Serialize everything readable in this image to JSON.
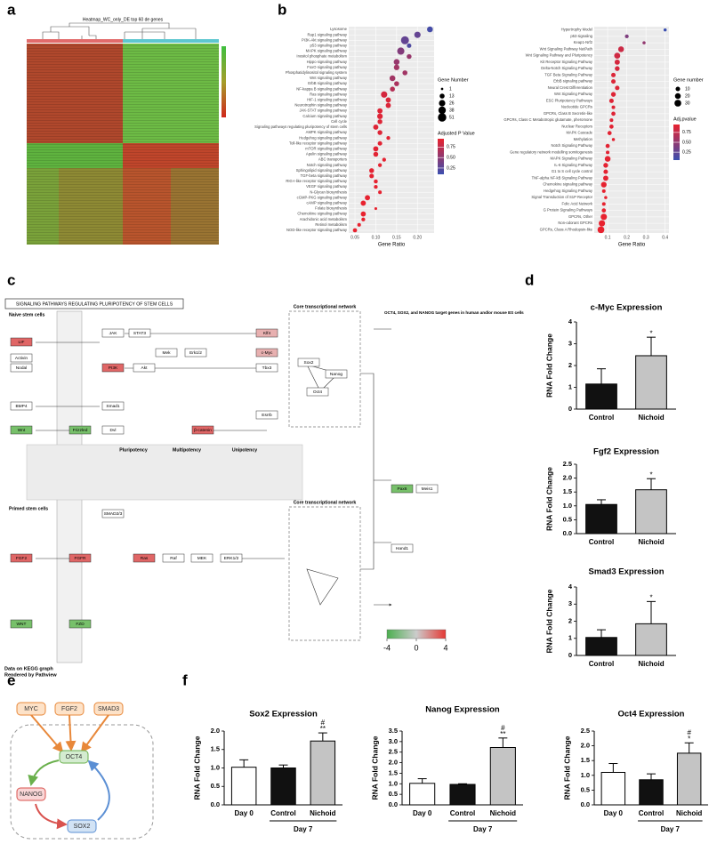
{
  "panel_labels": [
    "a",
    "b",
    "c",
    "d",
    "e",
    "f"
  ],
  "heatmap": {
    "title": "Heatmap_WC_only_DE top 60 de genes"
  },
  "chart_data": [
    {
      "type": "dot",
      "xlabel": "Gene Ratio",
      "categories": [
        "Lysosome",
        "Rap1 signaling pathway",
        "PI3K-Akt signaling pathway",
        "p53 signaling pathway",
        "MAPK signaling pathway",
        "Inositol phosphate metabolism",
        "Hippo signaling pathway",
        "FoxO signaling pathway",
        "Phosphatidylinositol signaling system",
        "Wnt signaling pathway",
        "ErbB signaling pathway",
        "NF-kappa B signaling pathway",
        "Ras signaling pathway",
        "HIF-1 signaling pathway",
        "Neurotrophin signaling pathway",
        "JAK-STAT signaling pathway",
        "Calcium signaling pathway",
        "Cell cycle",
        "Signaling pathways regulating pluripotency of stem cells",
        "AMPK signaling pathway",
        "Hedgehog signaling pathway",
        "Toll-like receptor signaling pathway",
        "mTOR signaling pathway",
        "Apelin signaling pathway",
        "ABC transporters",
        "Notch signaling pathway",
        "Sphingolipid signaling pathway",
        "TGF-beta signaling pathway",
        "RIG-I-like receptor signaling pathway",
        "VEGF signaling pathway",
        "N-Glycan biosynthesis",
        "cGMP-PKG signaling pathway",
        "cAMP signaling pathway",
        "Folate biosynthesis",
        "Chemokine signaling pathway",
        "Arachidonic acid metabolism",
        "Retinol metabolism",
        "NOD-like receptor signaling pathway"
      ],
      "values": [
        0.23,
        0.2,
        0.17,
        0.18,
        0.16,
        0.18,
        0.15,
        0.15,
        0.17,
        0.14,
        0.15,
        0.14,
        0.12,
        0.13,
        0.13,
        0.11,
        0.11,
        0.11,
        0.1,
        0.11,
        0.13,
        0.11,
        0.1,
        0.1,
        0.12,
        0.11,
        0.09,
        0.09,
        0.1,
        0.1,
        0.11,
        0.08,
        0.07,
        0.1,
        0.07,
        0.07,
        0.06,
        0.05
      ],
      "sizes": [
        20,
        25,
        45,
        10,
        35,
        12,
        20,
        18,
        13,
        20,
        13,
        13,
        25,
        15,
        15,
        15,
        18,
        12,
        15,
        12,
        6,
        10,
        15,
        13,
        6,
        6,
        12,
        10,
        7,
        6,
        5,
        15,
        15,
        2,
        14,
        6,
        5,
        8
      ],
      "pvalues": [
        0.15,
        0.3,
        0.3,
        0.2,
        0.45,
        0.55,
        0.55,
        0.6,
        0.6,
        0.6,
        0.65,
        0.7,
        0.85,
        0.88,
        0.88,
        0.9,
        0.9,
        0.9,
        0.9,
        0.9,
        0.92,
        0.92,
        0.92,
        0.92,
        0.93,
        0.93,
        0.93,
        0.93,
        0.94,
        0.94,
        0.94,
        0.94,
        0.95,
        0.95,
        0.95,
        0.95,
        0.95,
        0.95
      ],
      "xlim": [
        0.035,
        0.24
      ],
      "xticks": [
        0.05,
        {
          "value": 0.1,
          "label": "0.10"
        },
        0.15,
        {
          "value": 0.2,
          "label": "0.20"
        }
      ],
      "size_legend": {
        "title": "Gene Number",
        "values": [
          1,
          13,
          26,
          38,
          51
        ]
      },
      "color_legend": {
        "title": "Adjusted P Value",
        "ticks": [
          0.75,
          {
            "value": 0.5,
            "label": "0.50"
          },
          0.25
        ]
      },
      "clim": [
        0.1,
        0.95
      ],
      "colors": {
        "low": "#3b4fb0",
        "high": "#e8222f"
      },
      "background": "#ebebeb"
    },
    {
      "type": "dot",
      "xlabel": "Gene Ratio",
      "categories": [
        "Hypertrophy Model",
        "p53 signaling",
        "Keap1-Nrf2",
        "Wnt Signaling Pathway NetPath",
        "Wnt Signaling Pathway and Pluripotency",
        "Kit Receptor Signaling Pathway",
        "Delta-Notch Signaling Pathway",
        "TGF Beta Signaling Pathway",
        "ErbB signaling pathway",
        "Neural Crest Differentiation",
        "Wnt Signaling Pathway",
        "ESC Pluripotency Pathways",
        "Nucleotide GPCRs",
        "GPCRs, Class B Secretin-like",
        "GPCRs, Class C Metabotropic glutamate, pheromone",
        "Nuclear Receptors",
        "MAPK Cascade",
        "Methylation",
        "Notch Signaling Pathway",
        "Gene regulatory network modelling somitogenesis",
        "MAPK Signaling Pathway",
        "IL-6 Signaling Pathway",
        "G1 to S cell cycle control",
        "TNF-alpha NF-kB Signaling Pathway",
        "Chemokine signaling pathway",
        "Hedgehog Signaling Pathway",
        "Signal Transduction of S1P Receptor",
        "Folic Acid Network",
        "G Protein Signaling Pathways",
        "GPCRs, Other",
        "Non-odorant GPCRs",
        "GPCRs, Class A Rhodopsin-like"
      ],
      "values": [
        0.4,
        0.2,
        0.29,
        0.17,
        0.15,
        0.15,
        0.15,
        0.13,
        0.13,
        0.15,
        0.13,
        0.12,
        0.13,
        0.13,
        0.12,
        0.12,
        0.11,
        0.13,
        0.1,
        0.1,
        0.1,
        0.09,
        0.09,
        0.09,
        0.08,
        0.08,
        0.09,
        0.08,
        0.08,
        0.08,
        0.07,
        0.065
      ],
      "sizes": [
        3,
        6,
        3,
        20,
        22,
        15,
        12,
        10,
        10,
        10,
        12,
        10,
        5,
        8,
        5,
        8,
        8,
        3,
        8,
        5,
        20,
        12,
        10,
        15,
        18,
        5,
        3,
        5,
        8,
        25,
        25,
        30
      ],
      "pvalues": [
        0.05,
        0.4,
        0.5,
        0.8,
        0.82,
        0.85,
        0.85,
        0.88,
        0.88,
        0.88,
        0.9,
        0.9,
        0.9,
        0.9,
        0.9,
        0.92,
        0.92,
        0.92,
        0.92,
        0.92,
        0.93,
        0.93,
        0.93,
        0.93,
        0.94,
        0.94,
        0.94,
        0.94,
        0.95,
        0.95,
        0.95,
        0.95
      ],
      "xlim": [
        0.03,
        0.42
      ],
      "xticks": [
        0.1,
        0.2,
        0.3,
        0.4
      ],
      "size_legend": {
        "title": "Gene number",
        "values": [
          10,
          20,
          30
        ]
      },
      "color_legend": {
        "title": "Adj.pvalue",
        "ticks": [
          0.75,
          {
            "value": 0.5,
            "label": "0.50"
          },
          0.25
        ]
      },
      "clim": [
        0.05,
        0.95
      ],
      "colors": {
        "low": "#3b4fb0",
        "high": "#e8222f"
      },
      "background": "#ebebeb"
    },
    {
      "type": "bar",
      "title": "c-Myc Expression",
      "ylabel": "RNA Fold Change",
      "categories": [
        "Control",
        "Nichoid"
      ],
      "values": [
        1.15,
        2.45
      ],
      "errors": [
        0.7,
        0.85
      ],
      "colors": [
        "#111111",
        "#c4c4c4"
      ],
      "annotations": [
        null,
        [
          "*"
        ]
      ],
      "ylim": [
        0,
        4
      ],
      "yticks": [
        0,
        1,
        2,
        3,
        4
      ]
    },
    {
      "type": "bar",
      "title": "Fgf2 Expression",
      "ylabel": "RNA Fold Change",
      "categories": [
        "Control",
        "Nichoid"
      ],
      "values": [
        1.05,
        1.58
      ],
      "errors": [
        0.17,
        0.4
      ],
      "colors": [
        "#111111",
        "#c4c4c4"
      ],
      "annotations": [
        null,
        [
          "*"
        ]
      ],
      "ylim": [
        0,
        2.5
      ],
      "yticks": [
        {
          "value": 0,
          "label": "0.0"
        },
        0.5,
        {
          "value": 1,
          "label": "1.0"
        },
        1.5,
        {
          "value": 2,
          "label": "2.0"
        },
        2.5
      ]
    },
    {
      "type": "bar",
      "title": "Smad3 Expression",
      "ylabel": "RNA Fold Change",
      "categories": [
        "Control",
        "Nichoid"
      ],
      "values": [
        1.05,
        1.85
      ],
      "errors": [
        0.45,
        1.3
      ],
      "colors": [
        "#111111",
        "#c4c4c4"
      ],
      "annotations": [
        null,
        [
          "*"
        ]
      ],
      "ylim": [
        0,
        4
      ],
      "yticks": [
        0,
        1,
        2,
        3,
        4
      ]
    },
    {
      "type": "bar",
      "title": "Sox2 Expression",
      "ylabel": "RNA Fold Change",
      "categories": [
        "Day 0",
        "Control",
        "Nichoid"
      ],
      "values": [
        1.02,
        1.0,
        1.73
      ],
      "errors": [
        0.2,
        0.08,
        0.22
      ],
      "colors": [
        "#ffffff",
        "#111111",
        "#c4c4c4"
      ],
      "annotations": [
        null,
        null,
        [
          "#",
          "**"
        ]
      ],
      "group_label": "Day 7",
      "ylim": [
        0,
        2
      ],
      "yticks": [
        {
          "value": 0,
          "label": "0.0"
        },
        0.5,
        {
          "value": 1,
          "label": "1.0"
        },
        1.5,
        {
          "value": 2,
          "label": "2.0"
        }
      ]
    },
    {
      "type": "bar",
      "title": "Nanog Expression",
      "ylabel": "RNA Fold Change",
      "categories": [
        "Day 0",
        "Control",
        "Nichoid"
      ],
      "values": [
        1.02,
        0.97,
        2.72
      ],
      "errors": [
        0.22,
        0.03,
        0.45
      ],
      "colors": [
        "#ffffff",
        "#111111",
        "#c4c4c4"
      ],
      "annotations": [
        null,
        null,
        [
          "#",
          "**"
        ]
      ],
      "group_label": "Day 7",
      "ylim": [
        0,
        3.5
      ],
      "yticks": [
        {
          "value": 0,
          "label": "0.0"
        },
        0.5,
        {
          "value": 1,
          "label": "1.0"
        },
        1.5,
        {
          "value": 2,
          "label": "2.0"
        },
        2.5,
        {
          "value": 3,
          "label": "3.0"
        },
        3.5
      ]
    },
    {
      "type": "bar",
      "title": "Oct4 Expression",
      "ylabel": "RNA Fold Change",
      "categories": [
        "Day 0",
        "Control",
        "Nichoid"
      ],
      "values": [
        1.1,
        0.85,
        1.75
      ],
      "errors": [
        0.3,
        0.2,
        0.35
      ],
      "colors": [
        "#ffffff",
        "#111111",
        "#c4c4c4"
      ],
      "annotations": [
        null,
        null,
        [
          "#",
          "*"
        ]
      ],
      "group_label": "Day 7",
      "ylim": [
        0,
        2.5
      ],
      "yticks": [
        {
          "value": 0,
          "label": "0.0"
        },
        0.5,
        {
          "value": 1,
          "label": "1.0"
        },
        1.5,
        {
          "value": 2,
          "label": "2.0"
        },
        2.5
      ]
    }
  ],
  "pathway": {
    "title": "SIGNALING PATHWAYS REGULATING PLURIPOTENCY OF STEM CELLS",
    "sections": [
      "Naive stem cells",
      "Primed stem cells",
      "Core transcriptional network",
      "Core transcriptional network",
      "OCT4, SOX2, and NANOG target genes in human and/or mouse ES cells",
      "Pluripotency",
      "Multipotency",
      "Unipotency"
    ],
    "nodes": [
      {
        "label": "LIF",
        "color": "#e06666"
      },
      {
        "label": "JAK",
        "color": "#ffffff"
      },
      {
        "label": "STAT3",
        "color": "#ffffff"
      },
      {
        "label": "PI3K",
        "color": "#e06666"
      },
      {
        "label": "Akt",
        "color": "#ffffff"
      },
      {
        "label": "Mek",
        "color": "#ffffff"
      },
      {
        "label": "Erk1/2",
        "color": "#ffffff"
      },
      {
        "label": "Activin",
        "color": "#ffffff"
      },
      {
        "label": "Nodal",
        "color": "#ffffff"
      },
      {
        "label": "BMP4",
        "color": "#ffffff"
      },
      {
        "label": "Smad1",
        "color": "#ffffff"
      },
      {
        "label": "Wnt",
        "color": "#77c06a"
      },
      {
        "label": "Frizzled",
        "color": "#77c06a"
      },
      {
        "label": "Dvl",
        "color": "#ffffff"
      },
      {
        "label": "β-catenin",
        "color": "#e06666"
      },
      {
        "label": "Klf4",
        "color": "#e8b0b0"
      },
      {
        "label": "c-Myc",
        "color": "#e8b0b0"
      },
      {
        "label": "Tbx3",
        "color": "#ffffff"
      },
      {
        "label": "Sox2",
        "color": "#ffffff"
      },
      {
        "label": "Oct4",
        "color": "#ffffff"
      },
      {
        "label": "Nanog",
        "color": "#ffffff"
      },
      {
        "label": "Esrrb",
        "color": "#ffffff"
      },
      {
        "label": "FGF2",
        "color": "#e06666"
      },
      {
        "label": "FGFR",
        "color": "#e06666"
      },
      {
        "label": "Ras",
        "color": "#e06666"
      },
      {
        "label": "Raf",
        "color": "#ffffff"
      },
      {
        "label": "MEK",
        "color": "#ffffff"
      },
      {
        "label": "ERK1/2",
        "color": "#ffffff"
      },
      {
        "label": "WNT",
        "color": "#77c06a"
      },
      {
        "label": "FZD",
        "color": "#77c06a"
      },
      {
        "label": "SMAD2/3",
        "color": "#ffffff"
      },
      {
        "label": "Pax6",
        "color": "#77c06a"
      },
      {
        "label": "Meis1",
        "color": "#ffffff"
      },
      {
        "label": "Hand1",
        "color": "#ffffff"
      }
    ],
    "legend_ticks": [
      -4,
      0,
      4
    ],
    "legend_colors": [
      "#4caf50",
      "#cccccc",
      "#e53935"
    ],
    "footer": [
      "Data on KEGG graph",
      "Rendered by Pathview"
    ]
  },
  "network": {
    "nodes": [
      {
        "label": "MYC",
        "color": "#fde2c8",
        "stroke": "#e8883a"
      },
      {
        "label": "FGF2",
        "color": "#fde2c8",
        "stroke": "#e8883a"
      },
      {
        "label": "SMAD3",
        "color": "#fde2c8",
        "stroke": "#e8883a"
      },
      {
        "label": "OCT4",
        "color": "#d4ecd0",
        "stroke": "#6ab04c"
      },
      {
        "label": "NANOG",
        "color": "#f9d6d6",
        "stroke": "#d9534f"
      },
      {
        "label": "SOX2",
        "color": "#d2e3f5",
        "stroke": "#5b8fd4"
      }
    ]
  }
}
